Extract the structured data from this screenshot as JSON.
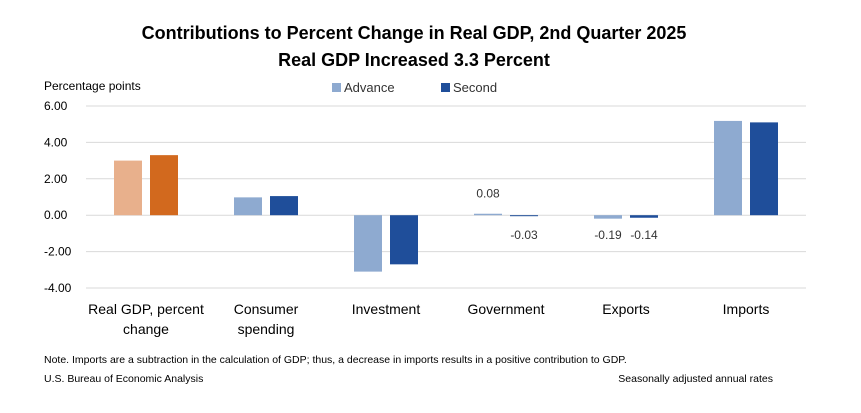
{
  "chart_data": {
    "type": "bar",
    "title": "Contributions to Percent Change in Real GDP, 2nd Quarter 2025",
    "subtitle": "Real GDP Increased 3.3 Percent",
    "ylabel": "Percentage points",
    "xlabel": "",
    "ylim": [
      -4,
      6
    ],
    "yticks": [
      "6.00",
      "4.00",
      "2.00",
      "0.00",
      "-2.00",
      "-4.00"
    ],
    "ytick_values": [
      6,
      4,
      2,
      0,
      -2,
      -4
    ],
    "grid": true,
    "legend_position": "top-center",
    "categories": [
      [
        "Real GDP, percent",
        "change"
      ],
      [
        "Consumer",
        "spending"
      ],
      [
        "Investment"
      ],
      [
        "Government"
      ],
      [
        "Exports"
      ],
      [
        "Imports"
      ]
    ],
    "series": [
      {
        "name": "Advance",
        "color": "#8eaad0",
        "values": [
          3.0,
          0.98,
          -3.1,
          0.08,
          -0.19,
          5.18
        ],
        "labels": [
          "",
          "",
          "",
          "0.08",
          "-0.19",
          ""
        ]
      },
      {
        "name": "Second",
        "color": "#1f4e9a",
        "values": [
          3.3,
          1.05,
          -2.7,
          -0.03,
          -0.14,
          5.1
        ],
        "labels": [
          "",
          "",
          "",
          "-0.03",
          "-0.14",
          ""
        ]
      }
    ],
    "highlight_colors": {
      "Advance": "#e8b08c",
      "Second": "#d2691e"
    },
    "highlight_category_index": 0
  },
  "notes": {
    "note": "Note. Imports are a subtraction in the calculation of GDP; thus, a decrease in imports results in a positive contribution to GDP.",
    "source": "U.S. Bureau of Economic Analysis",
    "rates": "Seasonally adjusted annual rates"
  }
}
